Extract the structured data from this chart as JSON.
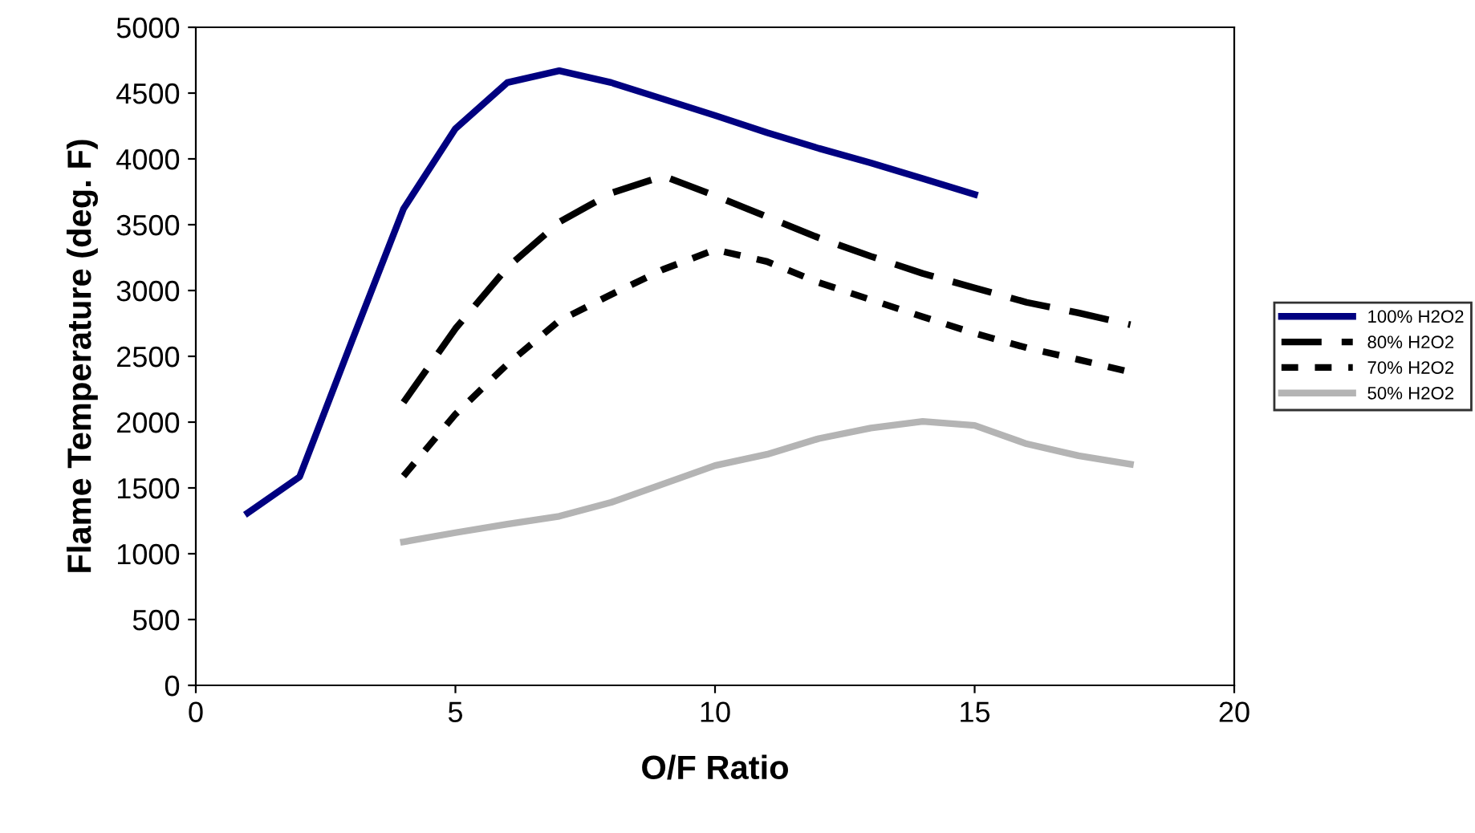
{
  "chart_data": {
    "type": "line",
    "xlabel": "O/F Ratio",
    "ylabel": "Flame Temperature (deg. F)",
    "xlim": [
      0,
      20
    ],
    "xticks": [
      0,
      5,
      10,
      15,
      20
    ],
    "ylim": [
      0,
      5000
    ],
    "yticks": [
      0,
      500,
      1000,
      1500,
      2000,
      2500,
      3000,
      3500,
      4000,
      4500,
      5000
    ],
    "grid": false,
    "legend": "right",
    "marker": "none",
    "series": [
      {
        "name": "100% H2O2",
        "color": "#000080",
        "line_style": "solid",
        "x": [
          1,
          2,
          3,
          4,
          5,
          6,
          7,
          8,
          9,
          10,
          11,
          12,
          13,
          14,
          15
        ],
        "values": [
          1310,
          1585,
          2610,
          3620,
          4230,
          4580,
          4670,
          4580,
          4455,
          4330,
          4200,
          4080,
          3970,
          3850,
          3730
        ]
      },
      {
        "name": "80% H2O2",
        "color": "#000000",
        "line_style": "dashed",
        "x": [
          4,
          5,
          6,
          7,
          8,
          9,
          10,
          11,
          12,
          13,
          14,
          15,
          16,
          17,
          18
        ],
        "values": [
          2150,
          2710,
          3175,
          3520,
          3740,
          3870,
          3720,
          3560,
          3400,
          3260,
          3130,
          3020,
          2910,
          2830,
          2740
        ]
      },
      {
        "name": "70% H2O2",
        "color": "#000000",
        "line_style": "dotted",
        "x": [
          4,
          5,
          6,
          7,
          8,
          9,
          10,
          11,
          12,
          13,
          14,
          15,
          16,
          17,
          18
        ],
        "values": [
          1590,
          2060,
          2440,
          2770,
          2970,
          3160,
          3310,
          3220,
          3060,
          2930,
          2800,
          2675,
          2565,
          2475,
          2380
        ]
      },
      {
        "name": "50% H2O2",
        "color": "#b4b4b4",
        "line_style": "solid",
        "x": [
          4,
          5,
          6,
          7,
          8,
          9,
          10,
          11,
          12,
          13,
          14,
          15,
          16,
          17,
          18
        ],
        "values": [
          1090,
          1160,
          1225,
          1285,
          1390,
          1530,
          1670,
          1755,
          1875,
          1955,
          2005,
          1975,
          1835,
          1745,
          1680
        ]
      }
    ]
  }
}
